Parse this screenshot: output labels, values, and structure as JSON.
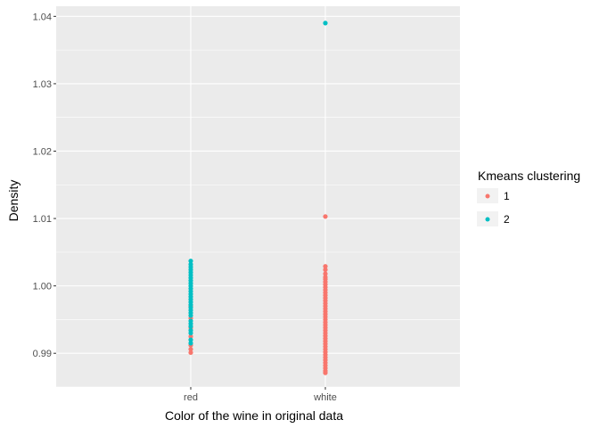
{
  "chart_data": {
    "type": "scatter",
    "title": "",
    "xlabel": "Color of the wine in original data",
    "ylabel": "Density",
    "categories": [
      "red",
      "white"
    ],
    "ylim": [
      0.985,
      1.0415
    ],
    "yticks": [
      0.99,
      1.0,
      1.01,
      1.02,
      1.03,
      1.04
    ],
    "ytick_labels": [
      "0.99",
      "1.00",
      "1.01",
      "1.02",
      "1.03",
      "1.04"
    ],
    "grid": true,
    "legend": {
      "title": "Kmeans clustering",
      "placement": "right",
      "entries": [
        {
          "label": "1",
          "color": "#F8766D"
        },
        {
          "label": "2",
          "color": "#00BFC4"
        }
      ]
    },
    "series": [
      {
        "cluster": "1",
        "color": "#F8766D",
        "points": [
          {
            "x": "red",
            "y": 0.9901
          },
          {
            "x": "red",
            "y": 0.9906
          },
          {
            "x": "red",
            "y": 0.9912
          },
          {
            "x": "red",
            "y": 0.9925
          },
          {
            "x": "red",
            "y": 0.9938
          },
          {
            "x": "red",
            "y": 0.9952
          },
          {
            "x": "red",
            "y": 0.997
          },
          {
            "x": "white",
            "y": 1.0103
          },
          {
            "x": "white",
            "y": 1.0029
          },
          {
            "x": "white",
            "y": 1.0024
          },
          {
            "x": "white",
            "y": 1.0018
          },
          {
            "x": "white",
            "y": 1.0013
          },
          {
            "x": "white",
            "y": 1.001
          },
          {
            "x": "white",
            "y": 1.0006
          },
          {
            "x": "white",
            "y": 1.0002
          },
          {
            "x": "white",
            "y": 0.9998
          },
          {
            "x": "white",
            "y": 0.9994
          },
          {
            "x": "white",
            "y": 0.999
          },
          {
            "x": "white",
            "y": 0.9986
          },
          {
            "x": "white",
            "y": 0.9982
          },
          {
            "x": "white",
            "y": 0.9978
          },
          {
            "x": "white",
            "y": 0.9974
          },
          {
            "x": "white",
            "y": 0.997
          },
          {
            "x": "white",
            "y": 0.9966
          },
          {
            "x": "white",
            "y": 0.9962
          },
          {
            "x": "white",
            "y": 0.9958
          },
          {
            "x": "white",
            "y": 0.9954
          },
          {
            "x": "white",
            "y": 0.995
          },
          {
            "x": "white",
            "y": 0.9946
          },
          {
            "x": "white",
            "y": 0.9942
          },
          {
            "x": "white",
            "y": 0.9938
          },
          {
            "x": "white",
            "y": 0.9934
          },
          {
            "x": "white",
            "y": 0.993
          },
          {
            "x": "white",
            "y": 0.9926
          },
          {
            "x": "white",
            "y": 0.9922
          },
          {
            "x": "white",
            "y": 0.9918
          },
          {
            "x": "white",
            "y": 0.9914
          },
          {
            "x": "white",
            "y": 0.991
          },
          {
            "x": "white",
            "y": 0.9906
          },
          {
            "x": "white",
            "y": 0.9902
          },
          {
            "x": "white",
            "y": 0.9898
          },
          {
            "x": "white",
            "y": 0.9894
          },
          {
            "x": "white",
            "y": 0.989
          },
          {
            "x": "white",
            "y": 0.9886
          },
          {
            "x": "white",
            "y": 0.9882
          },
          {
            "x": "white",
            "y": 0.9878
          },
          {
            "x": "white",
            "y": 0.9874
          },
          {
            "x": "white",
            "y": 0.9871
          }
        ]
      },
      {
        "cluster": "2",
        "color": "#00BFC4",
        "points": [
          {
            "x": "red",
            "y": 1.0037
          },
          {
            "x": "red",
            "y": 1.0032
          },
          {
            "x": "red",
            "y": 1.0028
          },
          {
            "x": "red",
            "y": 1.0024
          },
          {
            "x": "red",
            "y": 1.002
          },
          {
            "x": "red",
            "y": 1.0016
          },
          {
            "x": "red",
            "y": 1.0012
          },
          {
            "x": "red",
            "y": 1.0008
          },
          {
            "x": "red",
            "y": 1.0004
          },
          {
            "x": "red",
            "y": 1.0
          },
          {
            "x": "red",
            "y": 0.9996
          },
          {
            "x": "red",
            "y": 0.9992
          },
          {
            "x": "red",
            "y": 0.9988
          },
          {
            "x": "red",
            "y": 0.9984
          },
          {
            "x": "red",
            "y": 0.998
          },
          {
            "x": "red",
            "y": 0.9976
          },
          {
            "x": "red",
            "y": 0.9972
          },
          {
            "x": "red",
            "y": 0.9968
          },
          {
            "x": "red",
            "y": 0.9964
          },
          {
            "x": "red",
            "y": 0.996
          },
          {
            "x": "red",
            "y": 0.9956
          },
          {
            "x": "red",
            "y": 0.9948
          },
          {
            "x": "red",
            "y": 0.9944
          },
          {
            "x": "red",
            "y": 0.994
          },
          {
            "x": "red",
            "y": 0.9934
          },
          {
            "x": "red",
            "y": 0.993
          },
          {
            "x": "red",
            "y": 0.992
          },
          {
            "x": "red",
            "y": 0.9915
          },
          {
            "x": "white",
            "y": 1.039
          }
        ]
      }
    ]
  }
}
